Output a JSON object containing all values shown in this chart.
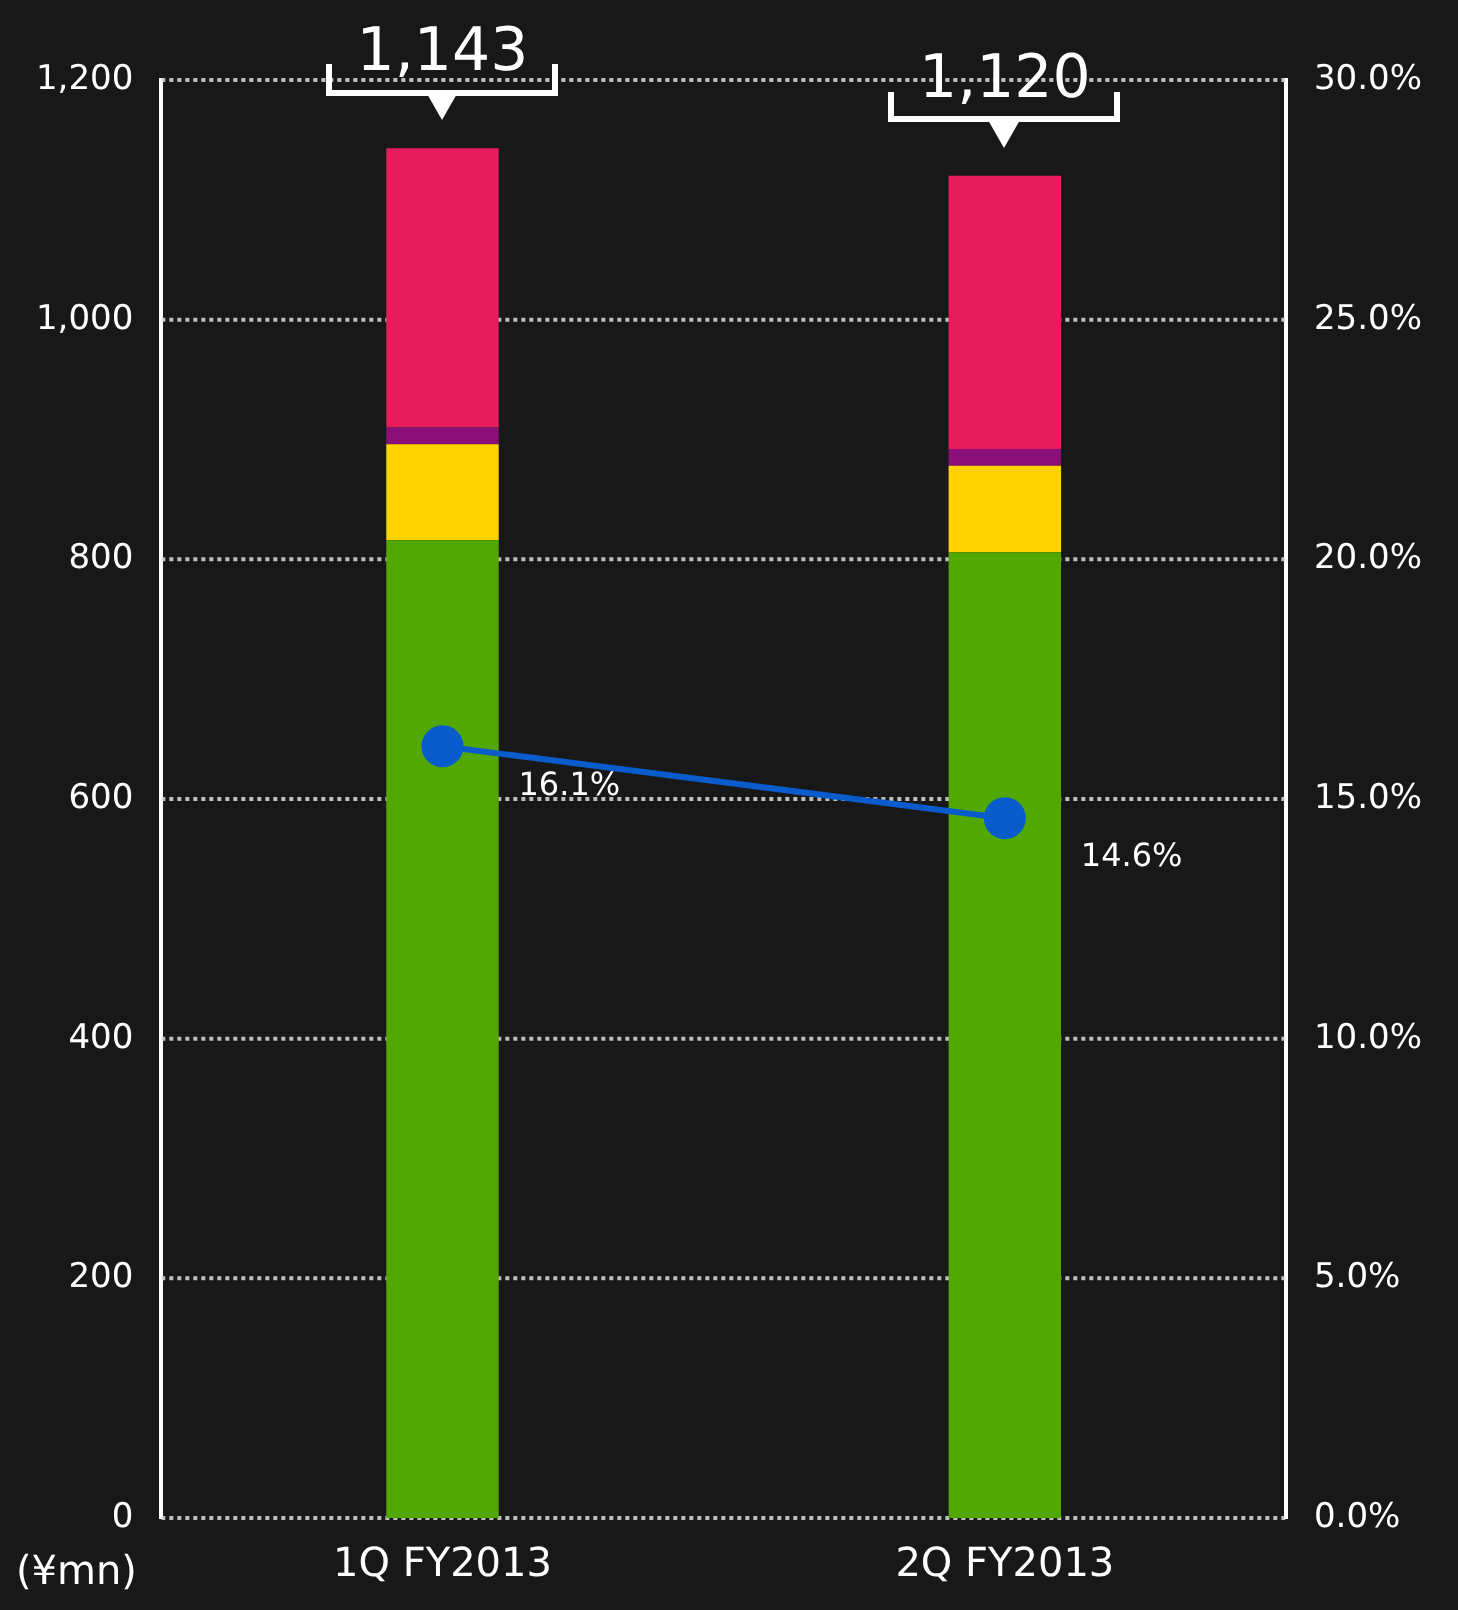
{
  "chart_data": {
    "type": "bar",
    "stacked": true,
    "categories": [
      "1Q FY2013",
      "2Q FY2013"
    ],
    "series": [
      {
        "color": "#52a800",
        "values": [
          816,
          806
        ]
      },
      {
        "color": "#ffd200",
        "values": [
          80,
          72
        ]
      },
      {
        "color": "#8a1078",
        "values": [
          14,
          14
        ]
      },
      {
        "color": "#e71c5e",
        "values": [
          233,
          228
        ]
      },
      {
        "type": "line",
        "axis": "y2",
        "color": "#0a5ccc",
        "values": [
          16.1,
          14.6
        ],
        "value_labels": [
          "16.1%",
          "14.6%"
        ]
      }
    ],
    "totals": [
      "1,143",
      "1,120"
    ],
    "ylim": [
      0,
      1200
    ],
    "yticks": [
      0,
      200,
      400,
      600,
      800,
      {
        "value": 1000,
        "label": "1,000"
      },
      {
        "value": 1200,
        "label": "1,200"
      }
    ],
    "y2lim": [
      0,
      30
    ],
    "y2ticks": [
      {
        "value": 0,
        "label": "0.0%"
      },
      {
        "value": 5,
        "label": "5.0%"
      },
      {
        "value": 10,
        "label": "10.0%"
      },
      {
        "value": 15,
        "label": "15.0%"
      },
      {
        "value": 20,
        "label": "20.0%"
      },
      {
        "value": 25,
        "label": "25.0%"
      },
      {
        "value": 30,
        "label": "30.0%"
      }
    ],
    "grid": "y",
    "legend": false,
    "marker": "circle",
    "annotations": [
      "(¥mn)"
    ]
  }
}
